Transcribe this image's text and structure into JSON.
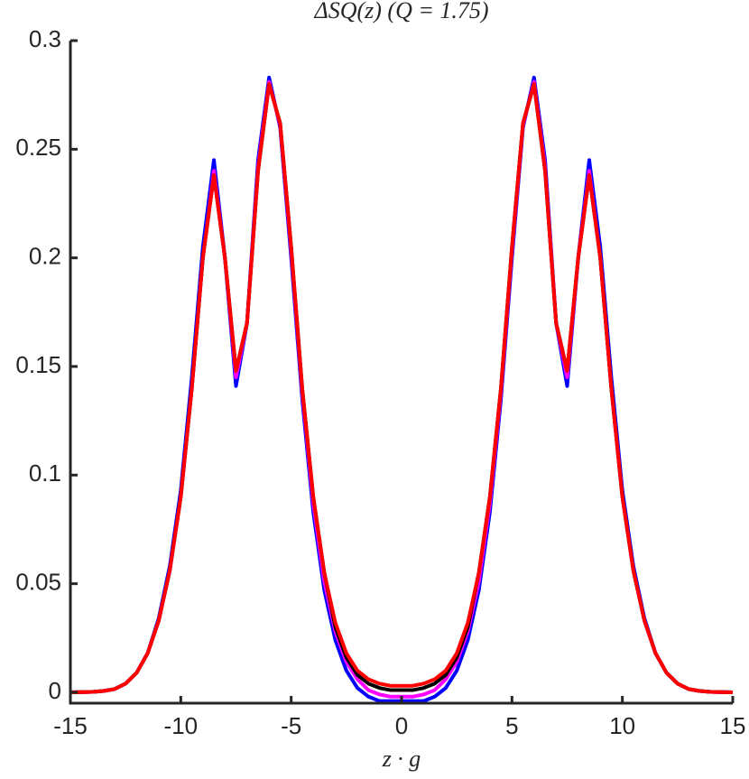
{
  "chart_data": {
    "type": "line",
    "title": "ΔSQ(z) (Q = 1.75)",
    "x_label": "z · g",
    "x": [
      -15,
      -14.5,
      -14,
      -13.5,
      -13,
      -12.5,
      -12,
      -11.5,
      -11,
      -10.5,
      -10,
      -9.5,
      -9,
      -8.5,
      -8,
      -7.5,
      -7,
      -6.5,
      -6,
      -5.5,
      -5,
      -4.5,
      -4,
      -3.5,
      -3,
      -2.5,
      -2,
      -1.5,
      -1,
      -0.5,
      0,
      0.5,
      1,
      1.5,
      2,
      2.5,
      3,
      3.5,
      4,
      4.5,
      5,
      5.5,
      6,
      6.5,
      7,
      7.5,
      8,
      8.5,
      9,
      9.5,
      10,
      10.5,
      11,
      11.5,
      12,
      12.5,
      13,
      13.5,
      14,
      14.5,
      15
    ],
    "series": [
      {
        "color": "#0000ff",
        "values": [
          0,
          0.0001,
          0.0002,
          0.0006,
          0.0015,
          0.004,
          0.009,
          0.018,
          0.034,
          0.058,
          0.093,
          0.145,
          0.205,
          0.245,
          0.2,
          0.141,
          0.17,
          0.245,
          0.283,
          0.26,
          0.2,
          0.135,
          0.083,
          0.047,
          0.024,
          0.01,
          0.002,
          -0.002,
          -0.004,
          -0.004,
          -0.004,
          -0.004,
          -0.004,
          -0.002,
          0.002,
          0.01,
          0.024,
          0.047,
          0.083,
          0.135,
          0.2,
          0.26,
          0.283,
          0.245,
          0.17,
          0.141,
          0.2,
          0.245,
          0.205,
          0.145,
          0.093,
          0.058,
          0.034,
          0.018,
          0.009,
          0.004,
          0.0015,
          0.0006,
          0.0002,
          0.0001,
          0
        ]
      },
      {
        "color": "#ff00ff",
        "values": [
          0,
          0.0001,
          0.0002,
          0.0006,
          0.0015,
          0.004,
          0.009,
          0.018,
          0.033,
          0.056,
          0.09,
          0.14,
          0.2,
          0.24,
          0.2,
          0.145,
          0.17,
          0.242,
          0.281,
          0.261,
          0.203,
          0.138,
          0.087,
          0.051,
          0.028,
          0.014,
          0.006,
          0.001,
          -0.001,
          -0.002,
          -0.002,
          -0.002,
          -0.001,
          0.001,
          0.006,
          0.014,
          0.028,
          0.051,
          0.087,
          0.138,
          0.203,
          0.261,
          0.281,
          0.242,
          0.17,
          0.145,
          0.2,
          0.24,
          0.2,
          0.14,
          0.09,
          0.056,
          0.033,
          0.018,
          0.009,
          0.004,
          0.0015,
          0.0006,
          0.0002,
          0.0001,
          0
        ]
      },
      {
        "color": "#000000",
        "values": [
          0,
          0.0001,
          0.0002,
          0.0006,
          0.0015,
          0.004,
          0.009,
          0.018,
          0.033,
          0.056,
          0.09,
          0.14,
          0.2,
          0.238,
          0.2,
          0.148,
          0.17,
          0.24,
          0.28,
          0.262,
          0.205,
          0.14,
          0.09,
          0.055,
          0.03,
          0.016,
          0.008,
          0.004,
          0.002,
          0.001,
          0.001,
          0.001,
          0.002,
          0.004,
          0.008,
          0.016,
          0.03,
          0.055,
          0.09,
          0.14,
          0.205,
          0.262,
          0.28,
          0.24,
          0.17,
          0.148,
          0.2,
          0.238,
          0.2,
          0.14,
          0.09,
          0.056,
          0.033,
          0.018,
          0.009,
          0.004,
          0.0015,
          0.0006,
          0.0002,
          0.0001,
          0
        ]
      },
      {
        "color": "#ff0000",
        "values": [
          0,
          0.0001,
          0.0002,
          0.0006,
          0.0015,
          0.004,
          0.009,
          0.018,
          0.033,
          0.056,
          0.09,
          0.14,
          0.2,
          0.238,
          0.2,
          0.148,
          0.17,
          0.24,
          0.28,
          0.262,
          0.205,
          0.14,
          0.09,
          0.055,
          0.032,
          0.018,
          0.01,
          0.006,
          0.004,
          0.003,
          0.003,
          0.003,
          0.004,
          0.006,
          0.01,
          0.018,
          0.032,
          0.055,
          0.09,
          0.14,
          0.205,
          0.262,
          0.28,
          0.24,
          0.17,
          0.148,
          0.2,
          0.238,
          0.2,
          0.14,
          0.09,
          0.056,
          0.033,
          0.018,
          0.009,
          0.004,
          0.0015,
          0.0006,
          0.0002,
          0.0001,
          0
        ]
      }
    ],
    "xlim": [
      -15,
      15
    ],
    "xticks": [
      -15,
      -10,
      -5,
      0,
      5,
      10,
      15
    ],
    "ylim": [
      -0.005,
      0.3
    ],
    "yticks": [
      0,
      0.05,
      0.1,
      0.15,
      0.2,
      0.25,
      0.3
    ]
  }
}
